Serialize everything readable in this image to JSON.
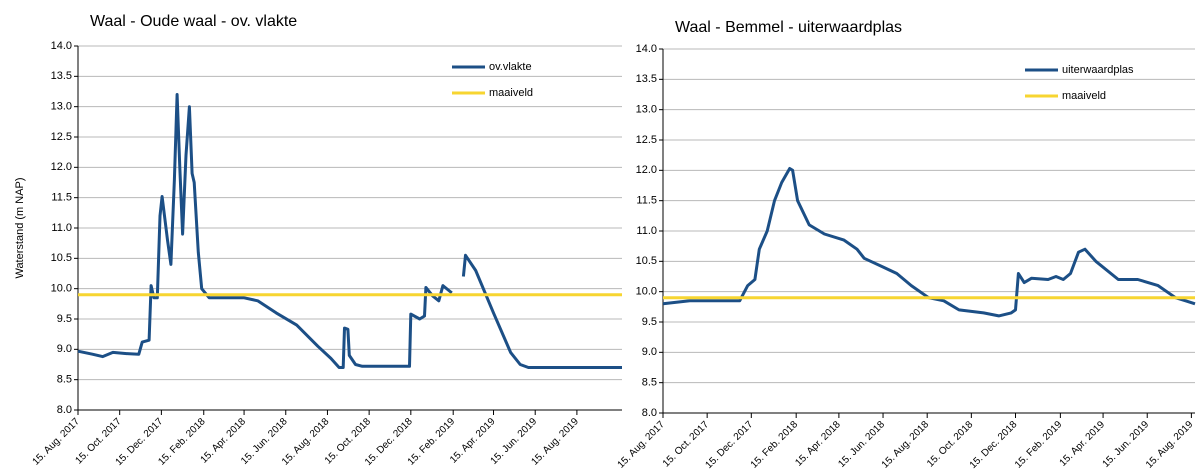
{
  "chart_data": [
    {
      "type": "line",
      "title": "Waal - Oude waal - ov. vlakte",
      "y_label": "Waterstand (m NAP)",
      "xlim": [
        "2017-08-15",
        "2019-10-20"
      ],
      "ylim": [
        8,
        14
      ],
      "xticks": [
        {
          "value": "2017-08-15",
          "label": "15. Aug. 2017"
        },
        {
          "value": "2017-10-15",
          "label": "15. Oct. 2017"
        },
        {
          "value": "2017-12-15",
          "label": "15. Dec. 2017"
        },
        {
          "value": "2018-02-15",
          "label": "15. Feb. 2018"
        },
        {
          "value": "2018-04-15",
          "label": "15. Apr. 2018"
        },
        {
          "value": "2018-06-15",
          "label": "15. Jun. 2018"
        },
        {
          "value": "2018-08-15",
          "label": "15. Aug. 2018"
        },
        {
          "value": "2018-10-15",
          "label": "15. Oct. 2018"
        },
        {
          "value": "2018-12-15",
          "label": "15. Dec. 2018"
        },
        {
          "value": "2019-02-15",
          "label": "15. Feb. 2019"
        },
        {
          "value": "2019-04-15",
          "label": "15. Apr. 2019"
        },
        {
          "value": "2019-06-15",
          "label": "15. Jun. 2019"
        },
        {
          "value": "2019-08-15",
          "label": "15. Aug. 2019"
        }
      ],
      "yticks": [
        {
          "value": 8,
          "label": "8.0"
        },
        8.5,
        {
          "value": 9,
          "label": "9.0"
        },
        9.5,
        {
          "value": 10,
          "label": "10.0"
        },
        10.5,
        {
          "value": 11,
          "label": "11.0"
        },
        11.5,
        {
          "value": 12,
          "label": "12.0"
        },
        12.5,
        {
          "value": 13,
          "label": "13.0"
        },
        13.5,
        {
          "value": 14,
          "label": "14.0"
        }
      ],
      "grid": true,
      "legend": "upper right",
      "series": [
        {
          "name": "ov.vlakte",
          "color": "#1c4f86",
          "x": [
            "2017-08-15",
            "2017-09-05",
            "2017-09-20",
            "2017-10-05",
            "2017-10-25",
            "2017-11-12",
            "2017-11-17",
            "2017-11-27",
            "2017-11-30",
            "2017-12-04",
            "2017-12-09",
            "2017-12-13",
            "2017-12-16",
            "2017-12-24",
            "2017-12-29",
            "2018-01-03",
            "2018-01-07",
            "2018-01-11",
            "2018-01-15",
            "2018-01-20",
            "2018-01-25",
            "2018-01-29",
            "2018-02-01",
            "2018-02-07",
            "2018-02-12",
            "2018-02-23",
            "2018-04-15",
            "2018-05-05",
            "2018-06-01",
            "2018-07-01",
            "2018-08-01",
            "2018-08-20",
            "2018-09-01",
            "2018-09-07",
            "2018-09-09",
            "2018-09-14",
            "2018-09-16",
            "2018-09-25",
            "2018-10-05",
            "2018-12-13",
            "2018-12-15",
            "2018-12-28",
            "2019-01-04",
            "2019-01-06",
            "2019-01-16",
            "2019-01-25",
            "2019-01-31",
            "2019-02-13",
            "2019-02-22",
            "2019-03-02",
            "2019-03-05",
            "2019-03-20",
            "2019-04-15",
            "2019-05-10",
            "2019-05-24",
            "2019-06-05",
            "2019-10-20"
          ],
          "values": [
            8.97,
            8.92,
            8.88,
            8.95,
            8.93,
            8.92,
            9.12,
            9.15,
            10.05,
            9.85,
            9.85,
            11.2,
            11.52,
            10.8,
            10.4,
            11.8,
            13.2,
            12.0,
            10.9,
            12.2,
            13.0,
            11.9,
            11.75,
            10.6,
            10.0,
            9.85,
            9.85,
            9.8,
            9.6,
            9.4,
            9.05,
            8.85,
            8.7,
            8.7,
            9.35,
            9.33,
            8.9,
            8.75,
            8.72,
            8.72,
            9.58,
            9.5,
            9.55,
            10.02,
            9.88,
            9.8,
            10.05,
            9.93,
            null,
            10.2,
            10.55,
            10.3,
            9.6,
            8.95,
            8.75,
            8.7,
            8.7
          ]
        },
        {
          "name": "maaiveld",
          "color": "#f7d531",
          "x": [
            "2017-08-15",
            "2019-10-20"
          ],
          "values": [
            9.9,
            9.9
          ]
        }
      ]
    },
    {
      "type": "line",
      "title": "Waal - Bemmel - uiterwaardplas",
      "xlim": [
        "2017-08-15",
        "2019-08-20"
      ],
      "ylim": [
        8,
        14
      ],
      "xticks": [
        {
          "value": "2017-08-15",
          "label": "15. Aug. 2017"
        },
        {
          "value": "2017-10-15",
          "label": "15. Oct. 2017"
        },
        {
          "value": "2017-12-15",
          "label": "15. Dec. 2017"
        },
        {
          "value": "2018-02-15",
          "label": "15. Feb. 2018"
        },
        {
          "value": "2018-04-15",
          "label": "15. Apr. 2018"
        },
        {
          "value": "2018-06-15",
          "label": "15. Jun. 2018"
        },
        {
          "value": "2018-08-15",
          "label": "15. Aug. 2018"
        },
        {
          "value": "2018-10-15",
          "label": "15. Oct. 2018"
        },
        {
          "value": "2018-12-15",
          "label": "15. Dec. 2018"
        },
        {
          "value": "2019-02-15",
          "label": "15. Feb. 2019"
        },
        {
          "value": "2019-04-15",
          "label": "15. Apr. 2019"
        },
        {
          "value": "2019-06-15",
          "label": "15. Jun. 2019"
        },
        {
          "value": "2019-08-15",
          "label": "15. Aug. 2019"
        }
      ],
      "yticks": [
        {
          "value": 8,
          "label": "8.0"
        },
        8.5,
        {
          "value": 9,
          "label": "9.0"
        },
        9.5,
        {
          "value": 10,
          "label": "10.0"
        },
        10.5,
        {
          "value": 11,
          "label": "11.0"
        },
        11.5,
        {
          "value": 12,
          "label": "12.0"
        },
        12.5,
        {
          "value": 13,
          "label": "13.0"
        },
        13.5,
        {
          "value": 14,
          "label": "14.0"
        }
      ],
      "grid": true,
      "legend": "upper right",
      "series": [
        {
          "name": "uiterwaardplas",
          "color": "#1c4f86",
          "x": [
            "2017-08-15",
            "2017-09-21",
            "2017-11-29",
            "2017-12-10",
            "2017-12-20",
            "2017-12-26",
            "2018-01-06",
            "2018-01-16",
            "2018-01-26",
            "2018-02-06",
            "2018-02-10",
            "2018-02-17",
            "2018-03-05",
            "2018-03-26",
            "2018-04-22",
            "2018-05-10",
            "2018-05-20",
            "2018-06-16",
            "2018-07-04",
            "2018-07-24",
            "2018-08-17",
            "2018-09-07",
            "2018-09-28",
            "2018-11-01",
            "2018-11-22",
            "2018-12-09",
            "2018-12-15",
            "2018-12-19",
            "2018-12-27",
            "2019-01-06",
            "2019-01-29",
            "2019-02-09",
            "2019-02-19",
            "2019-03-01",
            "2019-03-12",
            "2019-03-21",
            "2019-04-05",
            "2019-05-06",
            "2019-06-02",
            "2019-06-30",
            "2019-07-24",
            "2019-08-07",
            "2019-08-20"
          ],
          "values": [
            9.8,
            9.85,
            9.85,
            10.1,
            10.2,
            10.7,
            11.0,
            11.5,
            11.8,
            12.03,
            12.0,
            11.5,
            11.1,
            10.95,
            10.85,
            10.7,
            10.55,
            10.4,
            10.3,
            10.1,
            9.9,
            9.85,
            9.7,
            9.65,
            9.6,
            9.65,
            9.7,
            10.3,
            10.15,
            10.22,
            10.2,
            10.25,
            10.2,
            10.3,
            10.65,
            10.7,
            10.5,
            10.2,
            10.2,
            10.1,
            9.9,
            9.85,
            9.8
          ]
        },
        {
          "name": "maaiveld",
          "color": "#f7d531",
          "x": [
            "2017-08-15",
            "2019-08-20"
          ],
          "values": [
            9.9,
            9.9
          ]
        }
      ]
    }
  ]
}
